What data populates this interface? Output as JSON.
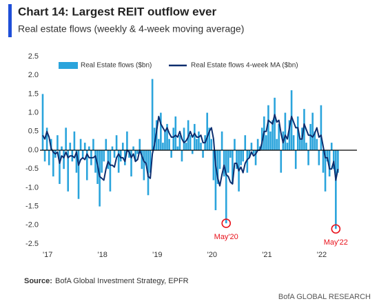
{
  "chart_data": {
    "type": "bar-line",
    "title": "Chart 14: Largest REIT outflow ever",
    "subtitle": "Real estate flows (weekly & 4-week moving average)",
    "source_label": "Source:",
    "source": "BofA Global Investment Strategy, EPFR",
    "footer": "BofA GLOBAL RESEARCH",
    "categories": [
      "'17",
      null,
      null,
      null,
      null,
      null,
      null,
      null,
      null,
      null,
      null,
      null,
      null,
      null,
      null,
      null,
      null,
      null,
      null,
      null,
      null,
      null,
      null,
      null,
      null,
      null,
      "'18",
      null,
      null,
      null,
      null,
      null,
      null,
      null,
      null,
      null,
      null,
      null,
      null,
      null,
      null,
      null,
      null,
      null,
      null,
      null,
      null,
      null,
      null,
      null,
      null,
      null,
      "'19",
      null,
      null,
      null,
      null,
      null,
      null,
      null,
      null,
      null,
      null,
      null,
      null,
      null,
      null,
      null,
      null,
      null,
      null,
      null,
      null,
      null,
      null,
      null,
      null,
      null,
      "'20",
      null,
      null,
      null,
      null,
      null,
      null,
      null,
      null,
      null,
      null,
      null,
      null,
      null,
      null,
      null,
      null,
      null,
      null,
      null,
      null,
      null,
      null,
      null,
      null,
      null,
      "'21",
      null,
      null,
      null,
      null,
      null,
      null,
      null,
      null,
      null,
      null,
      null,
      null,
      null,
      null,
      null,
      null,
      null,
      null,
      null,
      null,
      null,
      null,
      null,
      null,
      null,
      "'22",
      null,
      null,
      null,
      null,
      null,
      null,
      null,
      null,
      null,
      null
    ],
    "series": [
      {
        "name": "Real Estate flows ($bn)",
        "kind": "bar",
        "color": "#2aa4dc",
        "values": [
          1.5,
          -0.3,
          0.6,
          -0.4,
          0.3,
          -0.7,
          -0.2,
          0.4,
          -0.9,
          0.1,
          -0.5,
          0.6,
          -1.1,
          0.2,
          -0.3,
          0.5,
          -0.6,
          -1.3,
          0.3,
          -0.2,
          0.2,
          -0.8,
          0.1,
          -0.4,
          0.3,
          -0.6,
          -0.9,
          -1.5,
          -0.6,
          -0.3,
          0.3,
          -0.5,
          -1.1,
          0.1,
          -0.2,
          0.4,
          -0.6,
          -0.3,
          0.2,
          -0.4,
          0.5,
          -0.2,
          -0.7,
          0.1,
          -0.3,
          -0.1,
          0.3,
          -0.5,
          -0.8,
          -0.4,
          -1.2,
          -0.6,
          1.9,
          0.6,
          0.8,
          0.3,
          1.0,
          0.2,
          0.5,
          0.7,
          0.3,
          -0.2,
          0.6,
          0.9,
          0.1,
          0.4,
          -0.3,
          0.6,
          0.2,
          0.8,
          0.4,
          -0.1,
          0.7,
          0.3,
          0.5,
          0.2,
          -0.2,
          0.4,
          1.0,
          0.6,
          0.3,
          -0.8,
          -1.6,
          -0.9,
          -0.5,
          0.5,
          -0.7,
          -1.95,
          -0.6,
          -0.2,
          -0.9,
          0.3,
          -0.5,
          -1.1,
          -0.4,
          -0.3,
          0.4,
          -0.6,
          -0.2,
          0.2,
          -0.1,
          -0.4,
          0.3,
          0.1,
          0.6,
          0.9,
          0.4,
          1.2,
          0.5,
          0.8,
          1.4,
          0.3,
          0.7,
          -0.6,
          0.5,
          1.0,
          0.2,
          0.8,
          1.6,
          0.4,
          -0.5,
          0.9,
          0.3,
          0.6,
          1.1,
          0.2,
          -0.4,
          0.7,
          1.0,
          0.5,
          0.3,
          -0.4,
          1.2,
          -0.6,
          -1.1,
          -0.3,
          -0.7,
          0.2,
          -0.5,
          -2.1,
          -0.6
        ]
      },
      {
        "name": "Real Estate flows 4-week MA ($bn)",
        "kind": "line",
        "color": "#0c2d6e",
        "values": [
          0.4,
          0.3,
          0.5,
          0.35,
          0.05,
          -0.05,
          -0.1,
          -0.05,
          -0.35,
          -0.15,
          -0.2,
          -0.05,
          -0.2,
          -0.15,
          -0.15,
          -0.2,
          -0.05,
          -0.4,
          -0.25,
          -0.2,
          -0.25,
          -0.1,
          -0.2,
          -0.2,
          -0.2,
          -0.15,
          -0.4,
          -0.7,
          -0.75,
          -0.8,
          -0.5,
          -0.3,
          -0.4,
          -0.4,
          -0.45,
          -0.2,
          -0.1,
          -0.2,
          -0.2,
          -0.3,
          0.0,
          -0.05,
          -0.2,
          -0.1,
          -0.3,
          -0.25,
          0.0,
          -0.15,
          -0.3,
          -0.35,
          -0.7,
          -0.75,
          -0.1,
          0.15,
          0.5,
          0.9,
          0.7,
          0.6,
          0.5,
          0.6,
          0.45,
          0.35,
          0.35,
          0.4,
          0.35,
          0.5,
          0.3,
          0.2,
          0.25,
          0.35,
          0.5,
          0.35,
          0.45,
          0.35,
          0.35,
          0.4,
          0.2,
          0.2,
          0.35,
          0.5,
          0.6,
          0.3,
          -0.4,
          -0.75,
          -0.95,
          -0.65,
          -0.4,
          -0.65,
          -0.7,
          -0.85,
          -0.9,
          -0.35,
          -0.35,
          -0.55,
          -0.45,
          -0.6,
          -0.35,
          -0.25,
          -0.2,
          -0.05,
          -0.15,
          -0.1,
          0.0,
          0.0,
          0.2,
          0.5,
          0.5,
          0.8,
          0.75,
          0.7,
          0.95,
          0.75,
          0.8,
          0.45,
          0.2,
          0.4,
          0.3,
          0.6,
          0.9,
          0.75,
          0.6,
          0.6,
          0.3,
          0.3,
          0.7,
          0.55,
          0.4,
          0.4,
          0.35,
          0.45,
          0.6,
          0.35,
          0.4,
          0.1,
          -0.2,
          -0.2,
          -0.5,
          -0.5,
          -0.3,
          -0.8,
          -0.5
        ]
      }
    ],
    "annotations": [
      "May'20",
      "May'22"
    ],
    "annotation_color": "#e8101a",
    "ylim": [
      -2.5,
      2.5
    ],
    "yticks": [
      -2.5,
      {
        "value": -2,
        "label": "-2.0"
      },
      -1.5,
      {
        "value": -1,
        "label": "-1.0"
      },
      -0.5,
      {
        "value": 0,
        "label": "0.0"
      },
      0.5,
      {
        "value": 1,
        "label": "1.0"
      },
      1.5,
      {
        "value": 2,
        "label": "2.0"
      },
      2.5
    ]
  }
}
